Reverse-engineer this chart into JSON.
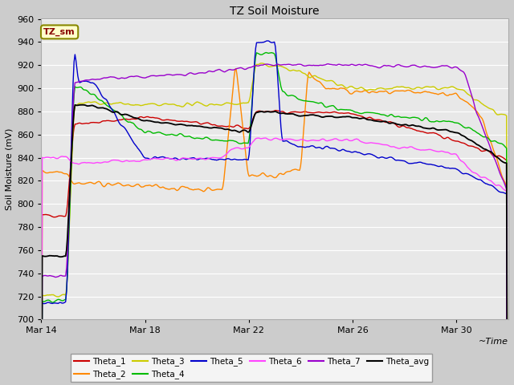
{
  "title": "TZ Soil Moisture",
  "ylabel": "Soil Moisture (mV)",
  "xlabel": "~Time",
  "ylim": [
    700,
    960
  ],
  "yticks": [
    700,
    720,
    740,
    760,
    780,
    800,
    820,
    840,
    860,
    880,
    900,
    920,
    940,
    960
  ],
  "xlim": [
    0,
    18
  ],
  "x_tick_labels": [
    "Mar 14",
    "Mar 18",
    "Mar 22",
    "Mar 26",
    "Mar 30"
  ],
  "x_tick_positions": [
    0,
    4,
    8,
    12,
    16
  ],
  "line_colors": {
    "Theta_1": "#cc0000",
    "Theta_2": "#ff8800",
    "Theta_3": "#cccc00",
    "Theta_4": "#00bb00",
    "Theta_5": "#0000cc",
    "Theta_6": "#ff44ff",
    "Theta_7": "#9900cc",
    "Theta_avg": "#000000"
  },
  "inset_label": "TZ_sm",
  "inset_text_color": "#880000",
  "inset_bg": "#ffffcc",
  "inset_border": "#888800",
  "fig_bg": "#cccccc",
  "plot_bg": "#e8e8e8",
  "grid_color": "#ffffff",
  "legend_ncol": 6,
  "legend_ncol2": 2,
  "figsize": [
    6.4,
    4.8
  ],
  "dpi": 100
}
